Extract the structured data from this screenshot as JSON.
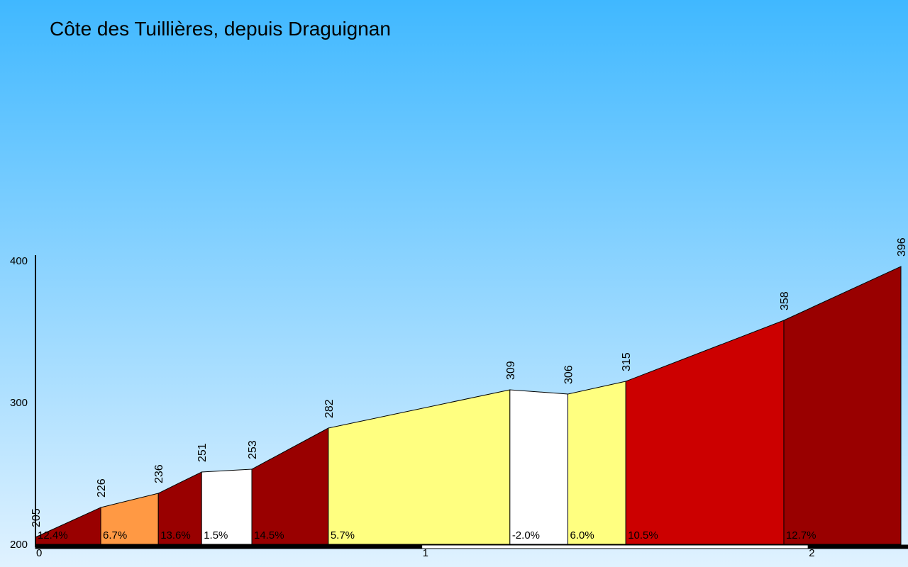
{
  "chart_data": {
    "type": "area",
    "title": "Côte des Tuillières, depuis Draguignan",
    "xlabel": "",
    "ylabel": "",
    "xlim": [
      0,
      2.24
    ],
    "ylim": [
      200,
      400
    ],
    "y_ticks": [
      {
        "value": 200,
        "label": "200"
      },
      {
        "value": 300,
        "label": "300"
      },
      {
        "value": 400,
        "label": "400"
      }
    ],
    "x_ticks": [
      {
        "value": 0,
        "label": "0"
      },
      {
        "value": 1,
        "label": "1"
      },
      {
        "value": 2,
        "label": "2"
      }
    ],
    "points": [
      {
        "x": 0.0,
        "elevation": 205,
        "label": "205"
      },
      {
        "x": 0.169,
        "elevation": 226,
        "label": "226"
      },
      {
        "x": 0.318,
        "elevation": 236,
        "label": "236"
      },
      {
        "x": 0.43,
        "elevation": 251,
        "label": "251"
      },
      {
        "x": 0.56,
        "elevation": 253,
        "label": "253"
      },
      {
        "x": 0.758,
        "elevation": 282,
        "label": "282"
      },
      {
        "x": 1.228,
        "elevation": 309,
        "label": "309"
      },
      {
        "x": 1.378,
        "elevation": 306,
        "label": "306"
      },
      {
        "x": 1.528,
        "elevation": 315,
        "label": "315"
      },
      {
        "x": 1.937,
        "elevation": 358,
        "label": "358"
      },
      {
        "x": 2.24,
        "elevation": 396,
        "label": "396"
      }
    ],
    "segments": [
      {
        "gradient": "12.4%",
        "color": "#990000"
      },
      {
        "gradient": "6.7%",
        "color": "#FF9944"
      },
      {
        "gradient": "13.6%",
        "color": "#990000"
      },
      {
        "gradient": "1.5%",
        "color": "#FFFFFF"
      },
      {
        "gradient": "14.5%",
        "color": "#990000"
      },
      {
        "gradient": "5.7%",
        "color": "#FFFF80"
      },
      {
        "gradient": "-2.0%",
        "color": "#FFFFFF"
      },
      {
        "gradient": "6.0%",
        "color": "#FFFF80"
      },
      {
        "gradient": "10.5%",
        "color": "#CC0000"
      },
      {
        "gradient": "12.7%",
        "color": "#990000"
      }
    ],
    "background": {
      "top": "#40B8FF",
      "bottom": "#E0F2FF"
    },
    "grid": false,
    "legend": "none"
  }
}
